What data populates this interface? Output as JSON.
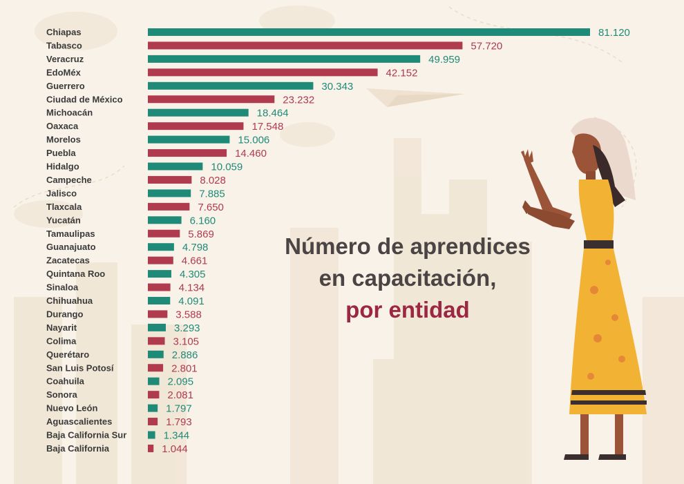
{
  "title": {
    "line1": "Número de aprendices",
    "line2": "en capacitación,",
    "line3": "por entidad"
  },
  "colors": {
    "green": "#1f8a78",
    "red": "#b03a4e",
    "title_accent": "#9b2743",
    "background": "#f8f2e8"
  },
  "chart_data": {
    "type": "bar",
    "orientation": "horizontal",
    "categories": [
      "Chiapas",
      "Tabasco",
      "Veracruz",
      "EdoMéx",
      "Guerrero",
      "Ciudad de México",
      "Michoacán",
      "Oaxaca",
      "Morelos",
      "Puebla",
      "Hidalgo",
      "Campeche",
      "Jalisco",
      "Tlaxcala",
      "Yucatán",
      "Tamaulipas",
      "Guanajuato",
      "Zacatecas",
      "Quintana Roo",
      "Sinaloa",
      "Chihuahua",
      "Durango",
      "Nayarit",
      "Colima",
      "Querétaro",
      "San Luis Potosí",
      "Coahuila",
      "Sonora",
      "Nuevo León",
      "Aguascalientes",
      "Baja California Sur",
      "Baja California"
    ],
    "values": [
      81120,
      57720,
      49959,
      42152,
      30343,
      23232,
      18464,
      17548,
      15006,
      14460,
      10059,
      8028,
      7885,
      7650,
      6160,
      5869,
      4798,
      4661,
      4305,
      4134,
      4091,
      3588,
      3293,
      3105,
      2886,
      2801,
      2095,
      2081,
      1797,
      1793,
      1344,
      1044
    ],
    "value_labels": [
      "81.120",
      "57.720",
      "49.959",
      "42.152",
      "30.343",
      "23.232",
      "18.464",
      "17.548",
      "15.006",
      "14.460",
      "10.059",
      "8.028",
      "7.885",
      "7.650",
      "6.160",
      "5.869",
      "4.798",
      "4.661",
      "4.305",
      "4.134",
      "4.091",
      "3.588",
      "3.293",
      "3.105",
      "2.886",
      "2.801",
      "2.095",
      "2.081",
      "1.797",
      "1.793",
      "1.344",
      "1.044"
    ],
    "bar_colors": "alternating green / red",
    "xlim": [
      0,
      81120
    ],
    "grid": false,
    "title": "Número de aprendices en capacitación, por entidad"
  }
}
